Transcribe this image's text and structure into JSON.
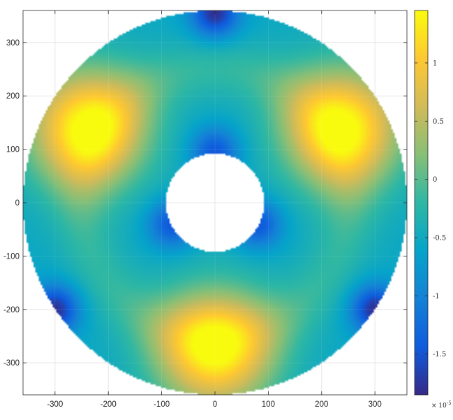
{
  "chart_data": {
    "type": "heatmap",
    "title": "",
    "xlabel": "",
    "ylabel": "",
    "geometry": "annulus",
    "outer_radius": 360,
    "inner_radius": 92,
    "xlim": [
      -360,
      360
    ],
    "ylim": [
      -360,
      360
    ],
    "x_ticks": [
      -300,
      -200,
      -100,
      0,
      100,
      200,
      300
    ],
    "y_ticks": [
      300,
      200,
      100,
      0,
      -100,
      -200,
      -300
    ],
    "grid": true,
    "colormap": "parula",
    "colorbar": {
      "position": "right",
      "clim": [
        -1.85,
        1.45
      ],
      "ticks": [
        1,
        0.5,
        0,
        -0.5,
        -1,
        -1.5
      ],
      "tick_labels": [
        "1",
        "0.5",
        "0",
        "-0.5",
        "-1",
        "-1.5"
      ],
      "scale_prefix": "× 10",
      "scale_exponent": "-5"
    },
    "features": {
      "maxima": [
        {
          "x": -240,
          "y": 140,
          "value": 1.4
        },
        {
          "x": 240,
          "y": 140,
          "value": 1.4
        },
        {
          "x": 0,
          "y": -275,
          "value": 1.4
        }
      ],
      "minima": [
        {
          "x": 0,
          "y": 95,
          "value": -1.5
        },
        {
          "x": -80,
          "y": -40,
          "value": -1.5
        },
        {
          "x": 80,
          "y": -40,
          "value": -1.5
        },
        {
          "x": 0,
          "y": 355,
          "value": -1.8
        },
        {
          "x": -300,
          "y": -200,
          "value": -1.8
        },
        {
          "x": 300,
          "y": -200,
          "value": -1.8
        }
      ]
    }
  },
  "colors": {
    "parula": [
      "#352a87",
      "#0f5cdd",
      "#1481d6",
      "#06a4ca",
      "#2eb7a4",
      "#87bf77",
      "#d1bb59",
      "#fec832",
      "#f9fb0e"
    ],
    "grid": "#dcdcdc",
    "axis": "#262626"
  }
}
